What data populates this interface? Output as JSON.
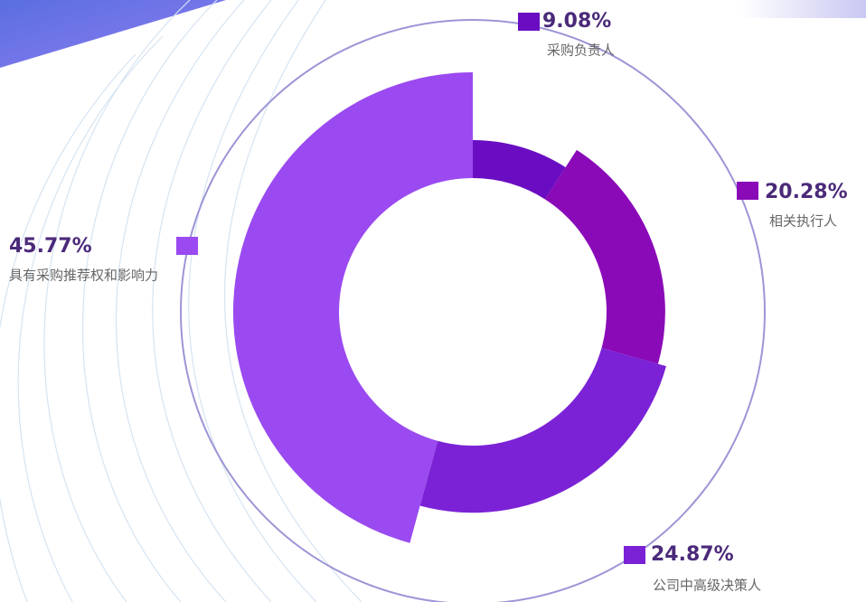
{
  "chart_data": {
    "type": "pie",
    "categories": [
      "采购负责人",
      "相关执行人",
      "公司中高级决策人",
      "具有采购推荐权和影响力"
    ],
    "values": [
      9.08,
      20.28,
      24.87,
      45.77
    ],
    "value_labels": [
      "9.08%",
      "20.28%",
      "24.87%",
      "45.77%"
    ],
    "colors": [
      "#6a0dc2",
      "#8a0ab8",
      "#7b22d6",
      "#9a4af0"
    ]
  }
}
